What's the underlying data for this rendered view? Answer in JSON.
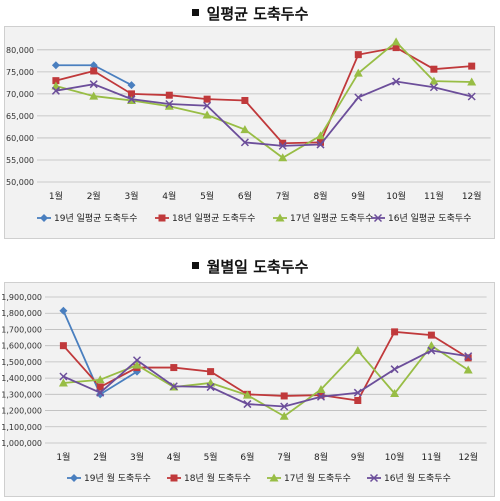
{
  "colors": {
    "y19": "#4a7fbf",
    "y18": "#c0393b",
    "y17": "#98bd45",
    "y16": "#6c4e9a",
    "grid": "#bcbcbc"
  },
  "chart_data": [
    {
      "type": "line",
      "title": "일평균 도축두수",
      "categories": [
        "1월",
        "2월",
        "3월",
        "4월",
        "5월",
        "6월",
        "7월",
        "8월",
        "9월",
        "10월",
        "11월",
        "12월"
      ],
      "ylim": [
        50000,
        82000
      ],
      "yticks": [
        50000,
        55000,
        60000,
        65000,
        70000,
        75000,
        80000
      ],
      "ytick_labels": [
        "50,000",
        "55,000",
        "60,000",
        "65,000",
        "70,000",
        "75,000",
        "80,000"
      ],
      "grid": true,
      "legend_position": "bottom",
      "series": [
        {
          "name": "19년 일평균 도축두수",
          "color_key": "y19",
          "marker": "diamond",
          "values": [
            76500,
            76500,
            72000,
            null,
            null,
            null,
            null,
            null,
            null,
            null,
            null,
            null
          ]
        },
        {
          "name": "18년 일평균 도축두수",
          "color_key": "y18",
          "marker": "square",
          "values": [
            73000,
            75200,
            70000,
            69700,
            68800,
            68500,
            58800,
            59000,
            78900,
            80500,
            75600,
            76300
          ]
        },
        {
          "name": "17년 일평균 도축두수",
          "color_key": "y17",
          "marker": "triangle",
          "values": [
            71800,
            69500,
            68500,
            67200,
            65200,
            61900,
            55500,
            60500,
            74700,
            81800,
            72900,
            72700
          ]
        },
        {
          "name": "16년 일평균 도축두수",
          "color_key": "y16",
          "marker": "x",
          "values": [
            70700,
            72200,
            68800,
            67700,
            67300,
            59000,
            58200,
            58500,
            69200,
            72800,
            71500,
            69400
          ]
        }
      ]
    },
    {
      "type": "line",
      "title": "월별일 도축두수",
      "categories": [
        "1월",
        "2월",
        "3월",
        "4월",
        "5월",
        "6월",
        "7월",
        "8월",
        "9월",
        "10월",
        "11월",
        "12월"
      ],
      "ylim": [
        1000000,
        1900000
      ],
      "yticks": [
        1000000,
        1100000,
        1200000,
        1300000,
        1400000,
        1500000,
        1600000,
        1700000,
        1800000,
        1900000
      ],
      "ytick_labels": [
        "1,000,000",
        "1,100,000",
        "1,200,000",
        "1,300,000",
        "1,400,000",
        "1,500,000",
        "1,600,000",
        "1,700,000",
        "1,800,000",
        "1,900,000"
      ],
      "grid": true,
      "legend_position": "bottom",
      "series": [
        {
          "name": "19년 월 도축두수",
          "color_key": "y19",
          "marker": "diamond",
          "values": [
            1815000,
            1300000,
            1440000,
            null,
            null,
            null,
            null,
            null,
            null,
            null,
            null,
            null
          ]
        },
        {
          "name": "18년 월 도축두수",
          "color_key": "y18",
          "marker": "square",
          "values": [
            1600000,
            1345000,
            1465000,
            1465000,
            1440000,
            1300000,
            1290000,
            1295000,
            1262000,
            1685000,
            1665000,
            1525000
          ]
        },
        {
          "name": "17년 월 도축두수",
          "color_key": "y17",
          "marker": "triangle",
          "values": [
            1370000,
            1390000,
            1480000,
            1345000,
            1370000,
            1295000,
            1165000,
            1330000,
            1570000,
            1305000,
            1600000,
            1450000
          ]
        },
        {
          "name": "16년 월 도축두수",
          "color_key": "y16",
          "marker": "x",
          "values": [
            1410000,
            1310000,
            1510000,
            1350000,
            1345000,
            1240000,
            1225000,
            1285000,
            1310000,
            1455000,
            1570000,
            1535000
          ]
        }
      ]
    }
  ]
}
